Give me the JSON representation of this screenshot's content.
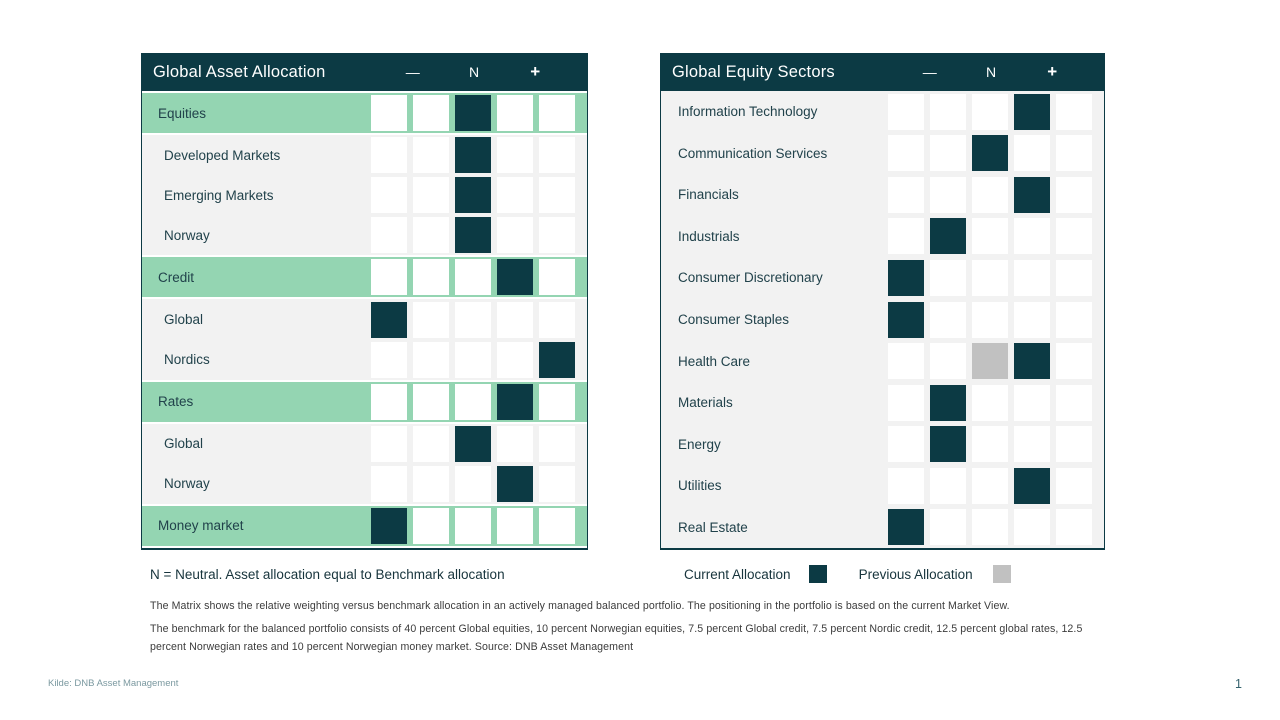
{
  "page": {
    "source_note": "Kilde: DNB Asset Management",
    "page_number": "1"
  },
  "colors": {
    "dark_teal": "#0c3a44",
    "highlight_green": "#94d5b2",
    "previous_gray": "#c1c1c1",
    "row_background": "#f2f2f2",
    "empty_cell": "#ffffff"
  },
  "scale": {
    "minus": "—",
    "neutral": "N",
    "plus": "+"
  },
  "tables": [
    {
      "title": "Global Asset Allocation",
      "rows": [
        {
          "label": "Equities",
          "category": true,
          "current": 3
        },
        {
          "label": "Developed Markets",
          "category": false,
          "current": 3
        },
        {
          "label": "Emerging Markets",
          "category": false,
          "current": 3
        },
        {
          "label": "Norway",
          "category": false,
          "current": 3
        },
        {
          "label": "Credit",
          "category": true,
          "current": 4
        },
        {
          "label": "Global",
          "category": false,
          "current": 1
        },
        {
          "label": "Nordics",
          "category": false,
          "current": 5
        },
        {
          "label": "Rates",
          "category": true,
          "current": 4
        },
        {
          "label": "Global",
          "category": false,
          "current": 3
        },
        {
          "label": "Norway",
          "category": false,
          "current": 4
        },
        {
          "label": "Money market",
          "category": true,
          "current": 1
        }
      ]
    },
    {
      "title": "Global Equity Sectors",
      "rows": [
        {
          "label": "Information Technology",
          "category": false,
          "current": 4
        },
        {
          "label": "Communication Services",
          "category": false,
          "current": 3
        },
        {
          "label": "Financials",
          "category": false,
          "current": 4
        },
        {
          "label": "Industrials",
          "category": false,
          "current": 2
        },
        {
          "label": "Consumer Discretionary",
          "category": false,
          "current": 1
        },
        {
          "label": "Consumer Staples",
          "category": false,
          "current": 1
        },
        {
          "label": "Health Care",
          "category": false,
          "current": 4,
          "previous": 3
        },
        {
          "label": "Materials",
          "category": false,
          "current": 2
        },
        {
          "label": "Energy",
          "category": false,
          "current": 2
        },
        {
          "label": "Utilities",
          "category": false,
          "current": 4
        },
        {
          "label": "Real Estate",
          "category": false,
          "current": 1
        }
      ]
    }
  ],
  "legend": {
    "neutral_note": "N = Neutral. Asset allocation equal to Benchmark allocation",
    "current_label": "Current Allocation",
    "previous_label": "Previous Allocation"
  },
  "footnotes": [
    "The Matrix shows the relative weighting versus benchmark allocation in an actively managed balanced portfolio. The positioning in the portfolio is based on the current Market View.",
    "The benchmark for the balanced portfolio consists of 40 percent Global equities, 10 percent Norwegian equities, 7.5 percent Global credit, 7.5 percent Nordic credit, 12.5 percent global rates, 12.5 percent Norwegian rates and 10 percent Norwegian money market. Source: DNB Asset Management"
  ],
  "chart_data": [
    {
      "type": "heatmap",
      "title": "Global Asset Allocation",
      "xlabel": "Relative weight vs benchmark",
      "scale_labels": [
        "—",
        "N",
        "+"
      ],
      "scale_cells": 5,
      "value_range": [
        -2,
        2
      ],
      "legend": [
        "Current Allocation",
        "Previous Allocation"
      ],
      "rows": [
        {
          "label": "Equities",
          "current": 0
        },
        {
          "label": "Developed Markets",
          "current": 0
        },
        {
          "label": "Emerging Markets",
          "current": 0
        },
        {
          "label": "Norway",
          "current": 0
        },
        {
          "label": "Credit",
          "current": 1
        },
        {
          "label": "Global",
          "current": -2
        },
        {
          "label": "Nordics",
          "current": 2
        },
        {
          "label": "Rates",
          "current": 1
        },
        {
          "label": "Global",
          "current": 0
        },
        {
          "label": "Norway",
          "current": 1
        },
        {
          "label": "Money market",
          "current": -2
        }
      ]
    },
    {
      "type": "heatmap",
      "title": "Global Equity Sectors",
      "xlabel": "Relative weight vs benchmark",
      "scale_labels": [
        "—",
        "N",
        "+"
      ],
      "scale_cells": 5,
      "value_range": [
        -2,
        2
      ],
      "legend": [
        "Current Allocation",
        "Previous Allocation"
      ],
      "rows": [
        {
          "label": "Information Technology",
          "current": 1
        },
        {
          "label": "Communication Services",
          "current": 0
        },
        {
          "label": "Financials",
          "current": 1
        },
        {
          "label": "Industrials",
          "current": -1
        },
        {
          "label": "Consumer Discretionary",
          "current": -2
        },
        {
          "label": "Consumer Staples",
          "current": -2
        },
        {
          "label": "Health Care",
          "current": 1,
          "previous": 0
        },
        {
          "label": "Materials",
          "current": -1
        },
        {
          "label": "Energy",
          "current": -1
        },
        {
          "label": "Utilities",
          "current": 1
        },
        {
          "label": "Real Estate",
          "current": -2
        }
      ]
    }
  ]
}
